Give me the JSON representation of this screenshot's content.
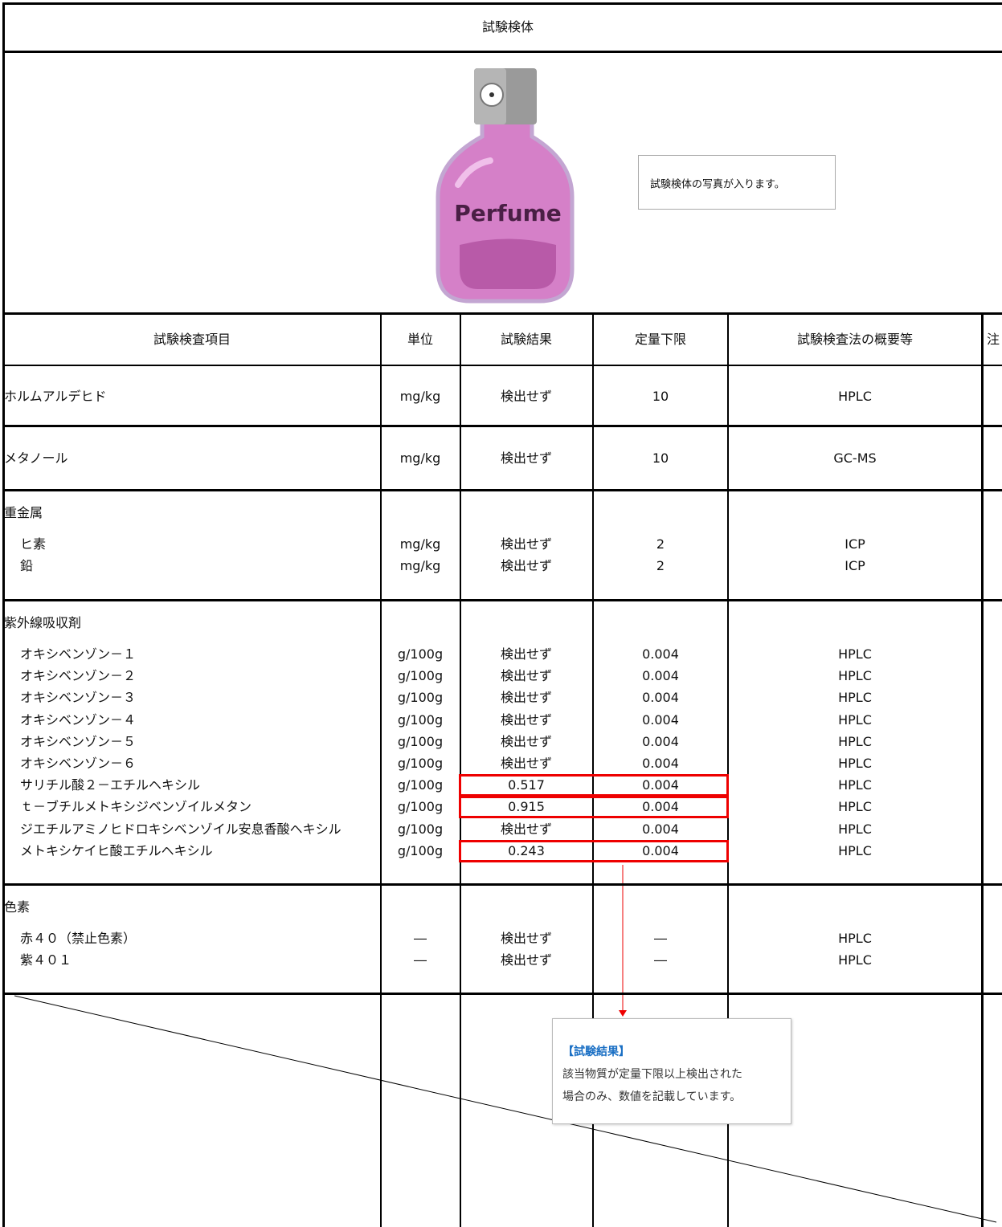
{
  "header": {
    "title": "試験検体"
  },
  "photo": {
    "image_label": "Perfume",
    "note": "試験検体の写真が入ります。"
  },
  "table": {
    "columns": [
      "試験検査項目",
      "単位",
      "試験結果",
      "定量下限",
      "試験検査法の概要等",
      "注"
    ],
    "groups": [
      {
        "name": "ホルムアルデヒド",
        "unit": "mg/kg",
        "result": "検出せず",
        "limit": 10,
        "method": "HPLC"
      },
      {
        "name": "メタノール",
        "unit": "mg/kg",
        "result": "検出せず",
        "limit": 10,
        "method": "GC-MS"
      },
      {
        "name": "重金属",
        "items": [
          {
            "name": "ヒ素",
            "unit": "mg/kg",
            "result": "検出せず",
            "limit": 2,
            "method": "ICP"
          },
          {
            "name": "鉛",
            "unit": "mg/kg",
            "result": "検出せず",
            "limit": 2,
            "method": "ICP"
          }
        ]
      },
      {
        "name": "紫外線吸収剤",
        "items": [
          {
            "name": "オキシベンゾン－１",
            "unit": "g/100g",
            "result": "検出せず",
            "limit": 0.004,
            "method": "HPLC"
          },
          {
            "name": "オキシベンゾン－２",
            "unit": "g/100g",
            "result": "検出せず",
            "limit": 0.004,
            "method": "HPLC"
          },
          {
            "name": "オキシベンゾン－３",
            "unit": "g/100g",
            "result": "検出せず",
            "limit": 0.004,
            "method": "HPLC"
          },
          {
            "name": "オキシベンゾン－４",
            "unit": "g/100g",
            "result": "検出せず",
            "limit": 0.004,
            "method": "HPLC"
          },
          {
            "name": "オキシベンゾン－５",
            "unit": "g/100g",
            "result": "検出せず",
            "limit": 0.004,
            "method": "HPLC"
          },
          {
            "name": "オキシベンゾン－６",
            "unit": "g/100g",
            "result": "検出せず",
            "limit": 0.004,
            "method": "HPLC"
          },
          {
            "name": "サリチル酸２－エチルヘキシル",
            "unit": "g/100g",
            "result": 0.517,
            "limit": 0.004,
            "method": "HPLC"
          },
          {
            "name": "ｔ－ブチルメトキシジベンゾイルメタン",
            "unit": "g/100g",
            "result": 0.915,
            "limit": 0.004,
            "method": "HPLC"
          },
          {
            "name": "ジエチルアミノヒドロキシベンゾイル安息香酸ヘキシル",
            "unit": "g/100g",
            "result": "検出せず",
            "limit": 0.004,
            "method": "HPLC"
          },
          {
            "name": "メトキシケイヒ酸エチルヘキシル",
            "unit": "g/100g",
            "result": 0.243,
            "limit": 0.004,
            "method": "HPLC"
          }
        ]
      },
      {
        "name": "色素",
        "items": [
          {
            "name": "赤４０（禁止色素）",
            "unit": "―",
            "result": "検出せず",
            "limit": "―",
            "method": "HPLC"
          },
          {
            "name": "紫４０１",
            "unit": "―",
            "result": "検出せず",
            "limit": "―",
            "method": "HPLC"
          }
        ]
      }
    ]
  },
  "callout": {
    "title": "【試験結果】",
    "lines": [
      "該当物質が定量下限以上検出された",
      "場合のみ、数値を記載しています。"
    ]
  }
}
